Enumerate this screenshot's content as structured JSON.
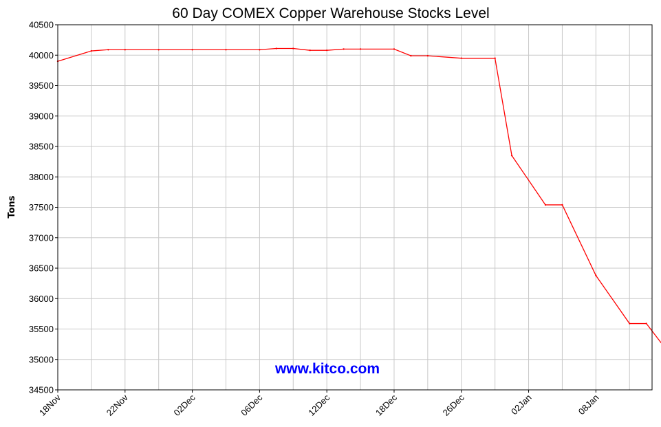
{
  "chart_data": {
    "type": "line",
    "title": "60 Day COMEX Copper Warehouse Stocks Level",
    "ylabel": "Tons",
    "xlabel": "",
    "ylim": [
      34500,
      40500
    ],
    "y_ticks": [
      40500,
      40000,
      39500,
      39000,
      38500,
      38000,
      37500,
      37000,
      36500,
      36000,
      35500,
      35000,
      34500
    ],
    "x_tick_labels": [
      "18Nov",
      "22Nov",
      "02Dec",
      "06Dec",
      "12Dec",
      "18Dec",
      "26Dec",
      "02Jan",
      "08Jan"
    ],
    "grid": true,
    "watermark": "www.kitco.com",
    "series": [
      {
        "color": "#ff0000",
        "points": [
          {
            "x": 0,
            "y": 39900
          },
          {
            "x": 1,
            "y": 40070
          },
          {
            "x": 1.5,
            "y": 40090
          },
          {
            "x": 2,
            "y": 40090
          },
          {
            "x": 3,
            "y": 40090
          },
          {
            "x": 4,
            "y": 40090
          },
          {
            "x": 5,
            "y": 40090
          },
          {
            "x": 6,
            "y": 40090
          },
          {
            "x": 6.5,
            "y": 40110
          },
          {
            "x": 7,
            "y": 40110
          },
          {
            "x": 7.5,
            "y": 40080
          },
          {
            "x": 8,
            "y": 40080
          },
          {
            "x": 8.5,
            "y": 40100
          },
          {
            "x": 9,
            "y": 40100
          },
          {
            "x": 10,
            "y": 40100
          },
          {
            "x": 10.5,
            "y": 39990
          },
          {
            "x": 11,
            "y": 39990
          },
          {
            "x": 12,
            "y": 39950
          },
          {
            "x": 13,
            "y": 39950
          },
          {
            "x": 13.5,
            "y": 38350
          },
          {
            "x": 14.5,
            "y": 37540
          },
          {
            "x": 15,
            "y": 37540
          },
          {
            "x": 16,
            "y": 36380
          },
          {
            "x": 17,
            "y": 35590
          },
          {
            "x": 17.5,
            "y": 35590
          },
          {
            "x": 18,
            "y": 35230
          },
          {
            "x": 19,
            "y": 35230
          }
        ]
      }
    ]
  }
}
